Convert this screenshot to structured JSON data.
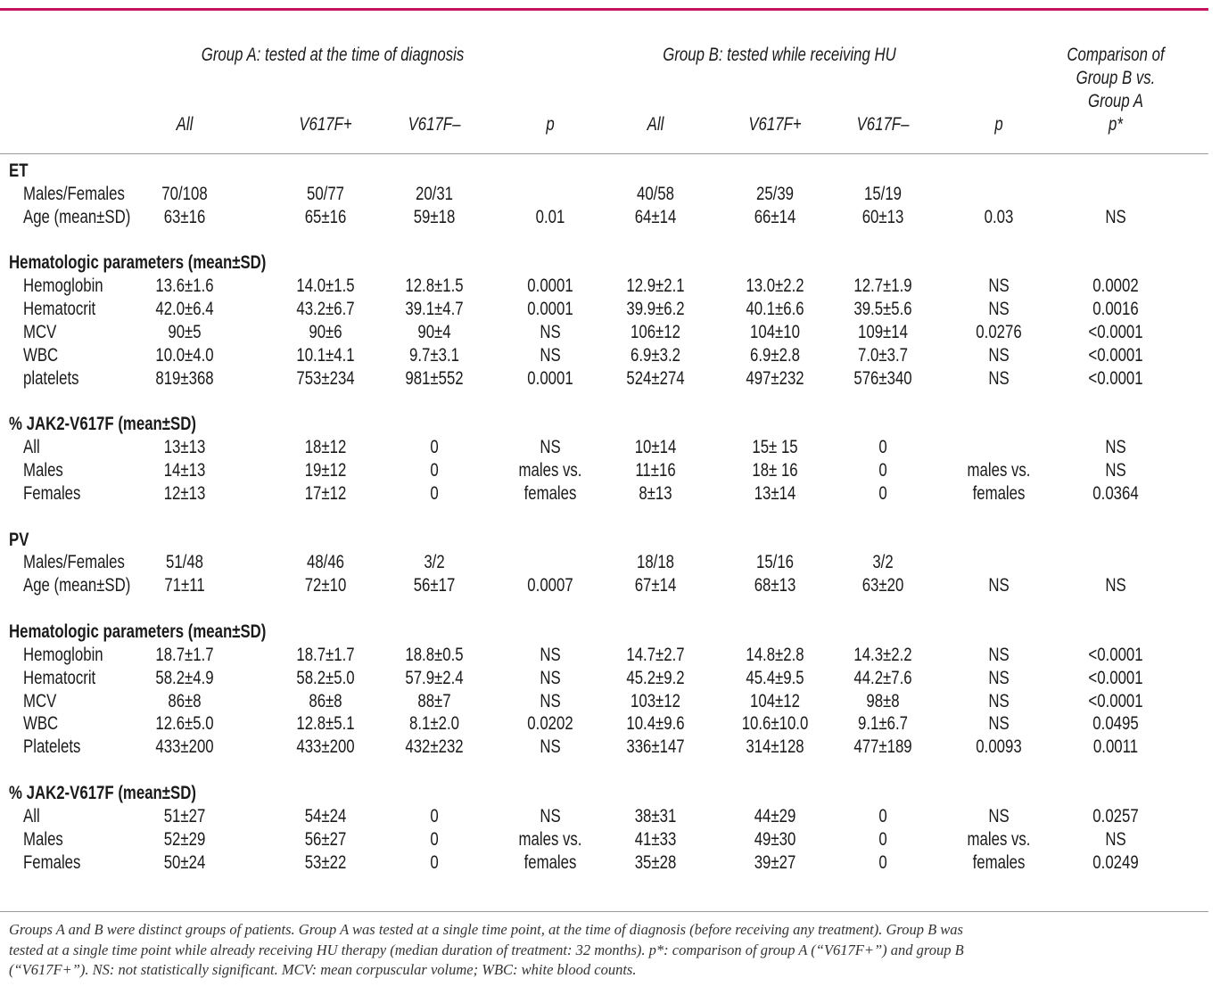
{
  "header": {
    "group_a": "Group A: tested at the time of diagnosis",
    "group_b": "Group B: tested while receiving HU",
    "comparison": [
      "Comparison of",
      "Group B vs.",
      "Group A",
      "p*"
    ],
    "columns": [
      "All",
      "V617F+",
      "V617F–",
      "p",
      "All",
      "V617F+",
      "V617F–",
      "p"
    ]
  },
  "sections": [
    {
      "title": "ET",
      "rows": [
        {
          "label": "Males/Females",
          "cells": [
            "70/108",
            "50/77",
            "20/31",
            null,
            "40/58",
            "25/39",
            "15/19",
            null,
            null
          ]
        },
        {
          "label": "Age (mean±SD)",
          "cells": [
            "63±16",
            "65±16",
            "59±18",
            "0.01",
            "64±14",
            "66±14",
            "60±13",
            "0.03",
            "NS"
          ]
        }
      ]
    },
    {
      "title": "Hematologic parameters (mean±SD)",
      "rows": [
        {
          "label": "Hemoglobin",
          "cells": [
            "13.6±1.6",
            "14.0±1.5",
            "12.8±1.5",
            "0.0001",
            "12.9±2.1",
            "13.0±2.2",
            "12.7±1.9",
            "NS",
            "0.0002"
          ]
        },
        {
          "label": "Hematocrit",
          "cells": [
            "42.0±6.4",
            "43.2±6.7",
            "39.1±4.7",
            "0.0001",
            "39.9±6.2",
            "40.1±6.6",
            "39.5±5.6",
            "NS",
            "0.0016"
          ]
        },
        {
          "label": "MCV",
          "cells": [
            "90±5",
            "90±6",
            "90±4",
            "NS",
            "106±12",
            "104±10",
            "109±14",
            "0.0276",
            "<0.0001"
          ]
        },
        {
          "label": "WBC",
          "cells": [
            "10.0±4.0",
            "10.1±4.1",
            "9.7±3.1",
            "NS",
            "6.9±3.2",
            "6.9±2.8",
            "7.0±3.7",
            "NS",
            "<0.0001"
          ]
        },
        {
          "label": "platelets",
          "cells": [
            "819±368",
            "753±234",
            "981±552",
            "0.0001",
            "524±274",
            "497±232",
            "576±340",
            "NS",
            "<0.0001"
          ]
        }
      ]
    },
    {
      "title": "% JAK2-V617F (mean±SD)",
      "rows": [
        {
          "label": "All",
          "cells": [
            "13±13",
            "18±12",
            "0",
            "NS",
            "10±14",
            "15± 15",
            "0",
            null,
            "NS"
          ]
        },
        {
          "label": "Males",
          "cells": [
            "14±13",
            "19±12",
            "0",
            "males vs.",
            "11±16",
            "18± 16",
            "0",
            "males vs.",
            "NS"
          ]
        },
        {
          "label": "Females",
          "cells": [
            "12±13",
            "17±12",
            "0",
            "females",
            "8±13",
            "13±14",
            "0",
            "females",
            "0.0364"
          ]
        }
      ]
    },
    {
      "title": "PV",
      "rows": [
        {
          "label": "Males/Females",
          "cells": [
            "51/48",
            "48/46",
            "3/2",
            null,
            "18/18",
            "15/16",
            "3/2",
            null,
            null
          ]
        },
        {
          "label": "Age (mean±SD)",
          "cells": [
            "71±11",
            "72±10",
            "56±17",
            "0.0007",
            "67±14",
            "68±13",
            "63±20",
            "NS",
            "NS"
          ]
        }
      ]
    },
    {
      "title": "Hematologic parameters (mean±SD)",
      "rows": [
        {
          "label": "Hemoglobin",
          "cells": [
            "18.7±1.7",
            "18.7±1.7",
            "18.8±0.5",
            "NS",
            "14.7±2.7",
            "14.8±2.8",
            "14.3±2.2",
            "NS",
            "<0.0001"
          ]
        },
        {
          "label": "Hematocrit",
          "cells": [
            "58.2±4.9",
            "58.2±5.0",
            "57.9±2.4",
            "NS",
            "45.2±9.2",
            "45.4±9.5",
            "44.2±7.6",
            "NS",
            "<0.0001"
          ]
        },
        {
          "label": "MCV",
          "cells": [
            "86±8",
            "86±8",
            "88±7",
            "NS",
            "103±12",
            "104±12",
            "98±8",
            "NS",
            "<0.0001"
          ]
        },
        {
          "label": "WBC",
          "cells": [
            "12.6±5.0",
            "12.8±5.1",
            "8.1±2.0",
            "0.0202",
            "10.4±9.6",
            "10.6±10.0",
            "9.1±6.7",
            "NS",
            "0.0495"
          ]
        },
        {
          "label": "Platelets",
          "cells": [
            "433±200",
            "433±200",
            "432±232",
            "NS",
            "336±147",
            "314±128",
            "477±189",
            "0.0093",
            "0.0011"
          ]
        }
      ]
    },
    {
      "title": "% JAK2-V617F (mean±SD)",
      "rows": [
        {
          "label": "All",
          "cells": [
            "51±27",
            "54±24",
            "0",
            "NS",
            "38±31",
            "44±29",
            "0",
            "NS",
            "0.0257"
          ]
        },
        {
          "label": "Males",
          "cells": [
            "52±29",
            "56±27",
            "0",
            "males vs.",
            "41±33",
            "49±30",
            "0",
            "males vs.",
            "NS"
          ]
        },
        {
          "label": "Females",
          "cells": [
            "50±24",
            "53±22",
            "0",
            "females",
            "35±28",
            "39±27",
            "0",
            "females",
            "0.0249"
          ]
        }
      ]
    }
  ],
  "footnote": [
    "Groups A and B were distinct groups of patients. Group A was tested at a single time point, at the time of diagnosis (before receiving any treatment). Group B was",
    "tested at a single time point while already receiving HU therapy (median duration of treatment: 32 months). p*: comparison of group A (“V617F+”) and group B",
    "(“V617F+”).  NS: not statistically significant. MCV: mean corpuscular volume; WBC: white blood counts."
  ]
}
